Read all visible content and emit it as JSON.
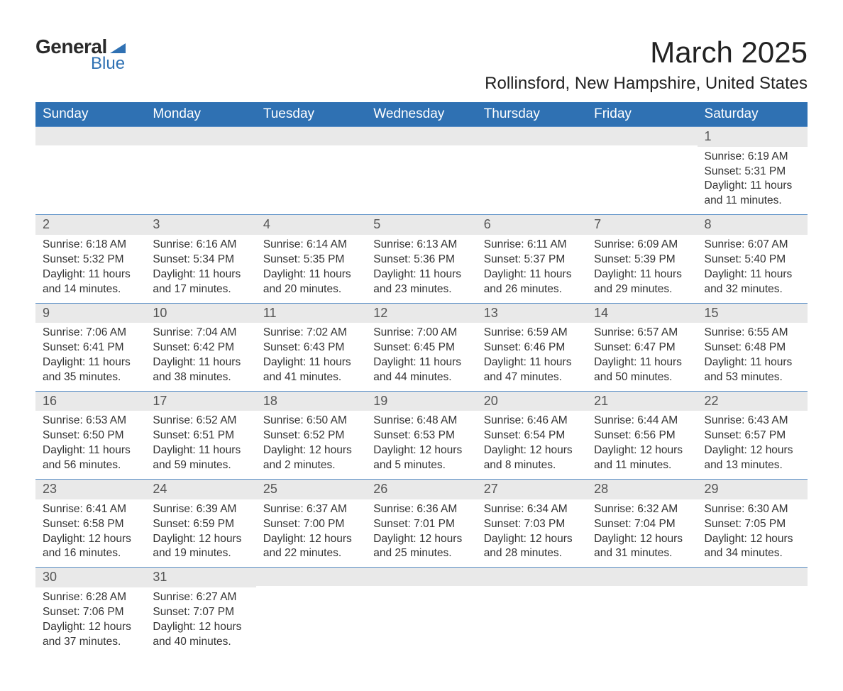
{
  "brand": {
    "word1": "General",
    "word2": "Blue",
    "accent_color": "#2f71b3"
  },
  "title": "March 2025",
  "location": "Rollinsford, New Hampshire, United States",
  "days_of_week": [
    "Sunday",
    "Monday",
    "Tuesday",
    "Wednesday",
    "Thursday",
    "Friday",
    "Saturday"
  ],
  "header_bg": "#2f71b3",
  "header_fg": "#ffffff",
  "daynum_bg": "#e9e9e9",
  "row_border": "#5a8fc7",
  "weeks": [
    [
      {
        "blank": true
      },
      {
        "blank": true
      },
      {
        "blank": true
      },
      {
        "blank": true
      },
      {
        "blank": true
      },
      {
        "blank": true
      },
      {
        "n": "1",
        "sunrise": "6:19 AM",
        "sunset": "5:31 PM",
        "dl_h": "11",
        "dl_m": "11"
      }
    ],
    [
      {
        "n": "2",
        "sunrise": "6:18 AM",
        "sunset": "5:32 PM",
        "dl_h": "11",
        "dl_m": "14"
      },
      {
        "n": "3",
        "sunrise": "6:16 AM",
        "sunset": "5:34 PM",
        "dl_h": "11",
        "dl_m": "17"
      },
      {
        "n": "4",
        "sunrise": "6:14 AM",
        "sunset": "5:35 PM",
        "dl_h": "11",
        "dl_m": "20"
      },
      {
        "n": "5",
        "sunrise": "6:13 AM",
        "sunset": "5:36 PM",
        "dl_h": "11",
        "dl_m": "23"
      },
      {
        "n": "6",
        "sunrise": "6:11 AM",
        "sunset": "5:37 PM",
        "dl_h": "11",
        "dl_m": "26"
      },
      {
        "n": "7",
        "sunrise": "6:09 AM",
        "sunset": "5:39 PM",
        "dl_h": "11",
        "dl_m": "29"
      },
      {
        "n": "8",
        "sunrise": "6:07 AM",
        "sunset": "5:40 PM",
        "dl_h": "11",
        "dl_m": "32"
      }
    ],
    [
      {
        "n": "9",
        "sunrise": "7:06 AM",
        "sunset": "6:41 PM",
        "dl_h": "11",
        "dl_m": "35"
      },
      {
        "n": "10",
        "sunrise": "7:04 AM",
        "sunset": "6:42 PM",
        "dl_h": "11",
        "dl_m": "38"
      },
      {
        "n": "11",
        "sunrise": "7:02 AM",
        "sunset": "6:43 PM",
        "dl_h": "11",
        "dl_m": "41"
      },
      {
        "n": "12",
        "sunrise": "7:00 AM",
        "sunset": "6:45 PM",
        "dl_h": "11",
        "dl_m": "44"
      },
      {
        "n": "13",
        "sunrise": "6:59 AM",
        "sunset": "6:46 PM",
        "dl_h": "11",
        "dl_m": "47"
      },
      {
        "n": "14",
        "sunrise": "6:57 AM",
        "sunset": "6:47 PM",
        "dl_h": "11",
        "dl_m": "50"
      },
      {
        "n": "15",
        "sunrise": "6:55 AM",
        "sunset": "6:48 PM",
        "dl_h": "11",
        "dl_m": "53"
      }
    ],
    [
      {
        "n": "16",
        "sunrise": "6:53 AM",
        "sunset": "6:50 PM",
        "dl_h": "11",
        "dl_m": "56"
      },
      {
        "n": "17",
        "sunrise": "6:52 AM",
        "sunset": "6:51 PM",
        "dl_h": "11",
        "dl_m": "59"
      },
      {
        "n": "18",
        "sunrise": "6:50 AM",
        "sunset": "6:52 PM",
        "dl_h": "12",
        "dl_m": "2"
      },
      {
        "n": "19",
        "sunrise": "6:48 AM",
        "sunset": "6:53 PM",
        "dl_h": "12",
        "dl_m": "5"
      },
      {
        "n": "20",
        "sunrise": "6:46 AM",
        "sunset": "6:54 PM",
        "dl_h": "12",
        "dl_m": "8"
      },
      {
        "n": "21",
        "sunrise": "6:44 AM",
        "sunset": "6:56 PM",
        "dl_h": "12",
        "dl_m": "11"
      },
      {
        "n": "22",
        "sunrise": "6:43 AM",
        "sunset": "6:57 PM",
        "dl_h": "12",
        "dl_m": "13"
      }
    ],
    [
      {
        "n": "23",
        "sunrise": "6:41 AM",
        "sunset": "6:58 PM",
        "dl_h": "12",
        "dl_m": "16"
      },
      {
        "n": "24",
        "sunrise": "6:39 AM",
        "sunset": "6:59 PM",
        "dl_h": "12",
        "dl_m": "19"
      },
      {
        "n": "25",
        "sunrise": "6:37 AM",
        "sunset": "7:00 PM",
        "dl_h": "12",
        "dl_m": "22"
      },
      {
        "n": "26",
        "sunrise": "6:36 AM",
        "sunset": "7:01 PM",
        "dl_h": "12",
        "dl_m": "25"
      },
      {
        "n": "27",
        "sunrise": "6:34 AM",
        "sunset": "7:03 PM",
        "dl_h": "12",
        "dl_m": "28"
      },
      {
        "n": "28",
        "sunrise": "6:32 AM",
        "sunset": "7:04 PM",
        "dl_h": "12",
        "dl_m": "31"
      },
      {
        "n": "29",
        "sunrise": "6:30 AM",
        "sunset": "7:05 PM",
        "dl_h": "12",
        "dl_m": "34"
      }
    ],
    [
      {
        "n": "30",
        "sunrise": "6:28 AM",
        "sunset": "7:06 PM",
        "dl_h": "12",
        "dl_m": "37"
      },
      {
        "n": "31",
        "sunrise": "6:27 AM",
        "sunset": "7:07 PM",
        "dl_h": "12",
        "dl_m": "40"
      },
      {
        "blank": true
      },
      {
        "blank": true
      },
      {
        "blank": true
      },
      {
        "blank": true
      },
      {
        "blank": true
      }
    ]
  ],
  "labels": {
    "sunrise_prefix": "Sunrise: ",
    "sunset_prefix": "Sunset: ",
    "daylight_prefix": "Daylight: ",
    "hours_word": " hours",
    "and_word": "and ",
    "minutes_word": " minutes."
  }
}
